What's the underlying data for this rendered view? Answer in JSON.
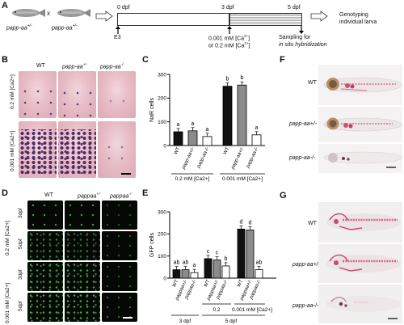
{
  "panels": {
    "A": {
      "letter": "A",
      "fish1": "papp-aa",
      "fish1_sup": "+/-",
      "cross": "x",
      "fish2": "papp-aa",
      "fish2_sup": "+/-",
      "t0": "0 dpf",
      "t3": "3 dpf",
      "t5": "5 dpf",
      "e3": "E3",
      "treatment_line1": "0.001 mM [Ca",
      "treatment_line1_sup": "2+",
      "treatment_line1_end": "]",
      "treatment_line2": "or 0.2 mM [Ca",
      "treatment_line2_sup": "2+",
      "treatment_line2_end": "]",
      "sampling_line1": "Sampling for",
      "sampling_line2": "in situ hybridization",
      "genotyping_line1": "Genotyping",
      "genotyping_line2": "individual larva"
    },
    "B": {
      "letter": "B",
      "col1": "WT",
      "col2": "papp-aa",
      "col2_sup": "+/-",
      "col3": "papp-aa",
      "col3_sup": "-/-",
      "row1": "0.2 mM [Ca2+]",
      "row2": "0.001 mM [Ca2+]"
    },
    "C": {
      "letter": "C",
      "ylabel": "NaR cells",
      "yticks": [
        "0",
        "100",
        "200",
        "300"
      ],
      "group1": "0.2 mM [Ca2+]",
      "group2": "0.001 mM [Ca2+]",
      "xlabels": [
        "WT",
        "papp-aa+/-",
        "papp-aa-/-",
        "WT",
        "papp-aa+/-",
        "papp-aa-/-"
      ],
      "sig": [
        "a",
        "a",
        "a",
        "b",
        "b",
        "a"
      ]
    },
    "D": {
      "letter": "D",
      "col1": "WT",
      "col2": "pappaa",
      "col2_sup": "+/-",
      "col3": "pappaa",
      "col3_sup": "-/-",
      "rows": [
        "3dpf",
        "5dpf",
        "3dpf",
        "5dpf"
      ],
      "group1": "0.2 mM [Ca2+]",
      "group2": "0.001 mM [Ca2+]"
    },
    "E": {
      "letter": "E",
      "ylabel": "GFP cells",
      "yticks": [
        "0",
        "100",
        "200",
        "300"
      ],
      "xlabels": [
        "WT",
        "pappaa+/-",
        "pappaa-/-",
        "WT",
        "pappaa+/-",
        "pappaa-/-",
        "WT",
        "pappaa+/-",
        "pappaa-/-"
      ],
      "sig": [
        "ab",
        "ab",
        "a",
        "c",
        "c",
        "b",
        "d",
        "d",
        "ab"
      ],
      "ca_02": "0.2",
      "ca_0001": "0.001 mM [Ca2+]",
      "day3": "3 dpf",
      "day5": "5 dpf"
    },
    "F": {
      "letter": "F",
      "labels": [
        "WT",
        "papp-aa+/-",
        "papp-aa-/-"
      ]
    },
    "G": {
      "letter": "G",
      "labels": [
        "WT",
        "papp-aa+/-",
        "papp-aa-/-"
      ]
    }
  },
  "chart_data": [
    {
      "type": "bar",
      "panel": "C",
      "ylabel": "NaR cells",
      "ylim": [
        0,
        300
      ],
      "categories": [
        "WT",
        "papp-aa+/-",
        "papp-aa-/-",
        "WT",
        "papp-aa+/-",
        "papp-aa-/-"
      ],
      "groups": [
        "0.2 mM [Ca2+]",
        "0.2 mM [Ca2+]",
        "0.2 mM [Ca2+]",
        "0.001 mM [Ca2+]",
        "0.001 mM [Ca2+]",
        "0.001 mM [Ca2+]"
      ],
      "values": [
        58,
        62,
        38,
        250,
        255,
        45
      ],
      "significance": [
        "a",
        "a",
        "a",
        "b",
        "b",
        "a"
      ],
      "colors": [
        "#111111",
        "#8c8c8c",
        "#ffffff",
        "#111111",
        "#8c8c8c",
        "#ffffff"
      ]
    },
    {
      "type": "bar",
      "panel": "E",
      "ylabel": "GFP cells",
      "ylim": [
        0,
        300
      ],
      "categories": [
        "WT",
        "pappaa+/-",
        "pappaa-/-",
        "WT",
        "pappaa+/-",
        "pappaa-/-",
        "WT",
        "pappaa+/-",
        "pappaa-/-"
      ],
      "groups": [
        "3 dpf",
        "3 dpf",
        "3 dpf",
        "5 dpf 0.2",
        "5 dpf 0.2",
        "5 dpf 0.2",
        "5 dpf 0.001 mM [Ca2+]",
        "5 dpf 0.001 mM [Ca2+]",
        "5 dpf 0.001 mM [Ca2+]"
      ],
      "values": [
        38,
        38,
        25,
        88,
        82,
        55,
        222,
        218,
        38
      ],
      "significance": [
        "ab",
        "ab",
        "a",
        "c",
        "c",
        "b",
        "d",
        "d",
        "ab"
      ],
      "colors": [
        "#111111",
        "#8c8c8c",
        "#ffffff",
        "#111111",
        "#8c8c8c",
        "#ffffff",
        "#111111",
        "#8c8c8c",
        "#ffffff"
      ]
    }
  ]
}
